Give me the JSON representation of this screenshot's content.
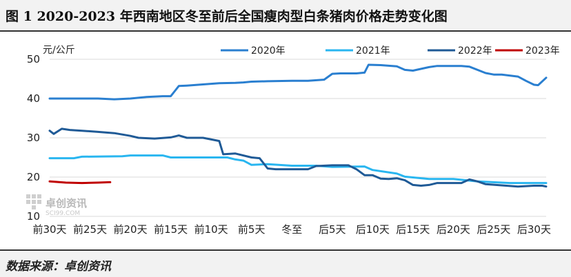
{
  "header": {
    "title": "图 1  2020-2023 年西南地区冬至前后全国瘦肉型白条猪肉价格走势变化图"
  },
  "footer": {
    "source": "数据来源：卓创资讯"
  },
  "watermark": {
    "name": "卓创资讯",
    "site": "SCI99.COM"
  },
  "chart_data": {
    "type": "line",
    "title": "",
    "xlabel": "",
    "ylabel": "元/公斤",
    "ylim": [
      10,
      50
    ],
    "yticks": [
      10,
      20,
      30,
      40,
      50
    ],
    "x_range": [
      -30,
      30
    ],
    "xticks": [
      {
        "x": -30,
        "label": "前30天"
      },
      {
        "x": -25,
        "label": "前25天"
      },
      {
        "x": -20,
        "label": "前20天"
      },
      {
        "x": -15,
        "label": "前15天"
      },
      {
        "x": -10,
        "label": "前10天"
      },
      {
        "x": -5,
        "label": "前5天"
      },
      {
        "x": 0,
        "label": "冬至"
      },
      {
        "x": 5,
        "label": "后5天"
      },
      {
        "x": 10,
        "label": "后10天"
      },
      {
        "x": 15,
        "label": "后15天"
      },
      {
        "x": 20,
        "label": "后20天"
      },
      {
        "x": 25,
        "label": "后25天"
      },
      {
        "x": 30,
        "label": "后30天"
      }
    ],
    "grid": "horizontal",
    "legend_position": "top",
    "series": [
      {
        "name": "2020年",
        "color": "#2a7fd0",
        "points": [
          [
            -30,
            40.0
          ],
          [
            -27,
            40.0
          ],
          [
            -24,
            40.0
          ],
          [
            -22,
            39.8
          ],
          [
            -20,
            40.0
          ],
          [
            -18,
            40.4
          ],
          [
            -16,
            40.6
          ],
          [
            -15,
            40.6
          ],
          [
            -14,
            43.2
          ],
          [
            -13,
            43.3
          ],
          [
            -11,
            43.6
          ],
          [
            -9,
            43.9
          ],
          [
            -7,
            44.0
          ],
          [
            -6,
            44.1
          ],
          [
            -5,
            44.3
          ],
          [
            -3,
            44.4
          ],
          [
            0,
            44.5
          ],
          [
            2,
            44.5
          ],
          [
            4,
            44.8
          ],
          [
            5,
            46.3
          ],
          [
            6,
            46.4
          ],
          [
            8,
            46.4
          ],
          [
            9,
            46.6
          ],
          [
            9.5,
            48.6
          ],
          [
            11,
            48.5
          ],
          [
            13,
            48.2
          ],
          [
            14,
            47.3
          ],
          [
            15,
            47.1
          ],
          [
            17,
            48.0
          ],
          [
            18,
            48.3
          ],
          [
            21,
            48.3
          ],
          [
            22,
            48.1
          ],
          [
            24,
            46.5
          ],
          [
            25,
            46.1
          ],
          [
            26,
            46.1
          ],
          [
            28,
            45.6
          ],
          [
            29,
            44.5
          ],
          [
            30,
            43.5
          ],
          [
            30.5,
            43.4
          ],
          [
            31.5,
            45.3
          ]
        ]
      },
      {
        "name": "2021年",
        "color": "#29b6f0",
        "points": [
          [
            -30,
            24.8
          ],
          [
            -27,
            24.8
          ],
          [
            -26,
            25.2
          ],
          [
            -21,
            25.3
          ],
          [
            -20,
            25.5
          ],
          [
            -16,
            25.5
          ],
          [
            -15,
            25.0
          ],
          [
            -8,
            25.0
          ],
          [
            -7,
            24.5
          ],
          [
            -6,
            24.2
          ],
          [
            -5,
            23.1
          ],
          [
            -3,
            23.3
          ],
          [
            0,
            22.9
          ],
          [
            3,
            22.9
          ],
          [
            5,
            22.6
          ],
          [
            9,
            22.7
          ],
          [
            10,
            21.8
          ],
          [
            13,
            20.9
          ],
          [
            14,
            20.1
          ],
          [
            17,
            19.5
          ],
          [
            20,
            19.5
          ],
          [
            23,
            18.9
          ],
          [
            27,
            18.5
          ],
          [
            31.5,
            18.5
          ]
        ]
      },
      {
        "name": "2022年",
        "color": "#1f5a96",
        "points": [
          [
            -30,
            31.8
          ],
          [
            -29.5,
            31.0
          ],
          [
            -28.5,
            32.3
          ],
          [
            -27.5,
            32.0
          ],
          [
            -26,
            31.8
          ],
          [
            -24,
            31.5
          ],
          [
            -22,
            31.2
          ],
          [
            -20,
            30.5
          ],
          [
            -19,
            30.0
          ],
          [
            -17,
            29.8
          ],
          [
            -15,
            30.1
          ],
          [
            -14,
            30.6
          ],
          [
            -13,
            30.0
          ],
          [
            -11,
            30.0
          ],
          [
            -9,
            29.2
          ],
          [
            -8.5,
            25.8
          ],
          [
            -7,
            26.0
          ],
          [
            -5,
            25.0
          ],
          [
            -4,
            24.8
          ],
          [
            -3,
            22.2
          ],
          [
            -2,
            22.0
          ],
          [
            0,
            22.0
          ],
          [
            2,
            22.0
          ],
          [
            3,
            22.8
          ],
          [
            5,
            23.0
          ],
          [
            7,
            23.0
          ],
          [
            8,
            22.0
          ],
          [
            9,
            20.5
          ],
          [
            10,
            20.5
          ],
          [
            11,
            19.6
          ],
          [
            12,
            19.5
          ],
          [
            13,
            19.7
          ],
          [
            14,
            19.2
          ],
          [
            15,
            18.0
          ],
          [
            16,
            17.8
          ],
          [
            17,
            18.0
          ],
          [
            18,
            18.5
          ],
          [
            21,
            18.5
          ],
          [
            22,
            19.4
          ],
          [
            23,
            18.9
          ],
          [
            24,
            18.2
          ],
          [
            26,
            17.9
          ],
          [
            28,
            17.6
          ],
          [
            29,
            17.7
          ],
          [
            30,
            17.8
          ],
          [
            31,
            17.8
          ],
          [
            31.5,
            17.6
          ]
        ]
      },
      {
        "name": "2023年",
        "color": "#c00000",
        "points": [
          [
            -30,
            18.9
          ],
          [
            -28,
            18.6
          ],
          [
            -26,
            18.5
          ],
          [
            -24,
            18.6
          ],
          [
            -22.5,
            18.7
          ]
        ]
      }
    ]
  }
}
